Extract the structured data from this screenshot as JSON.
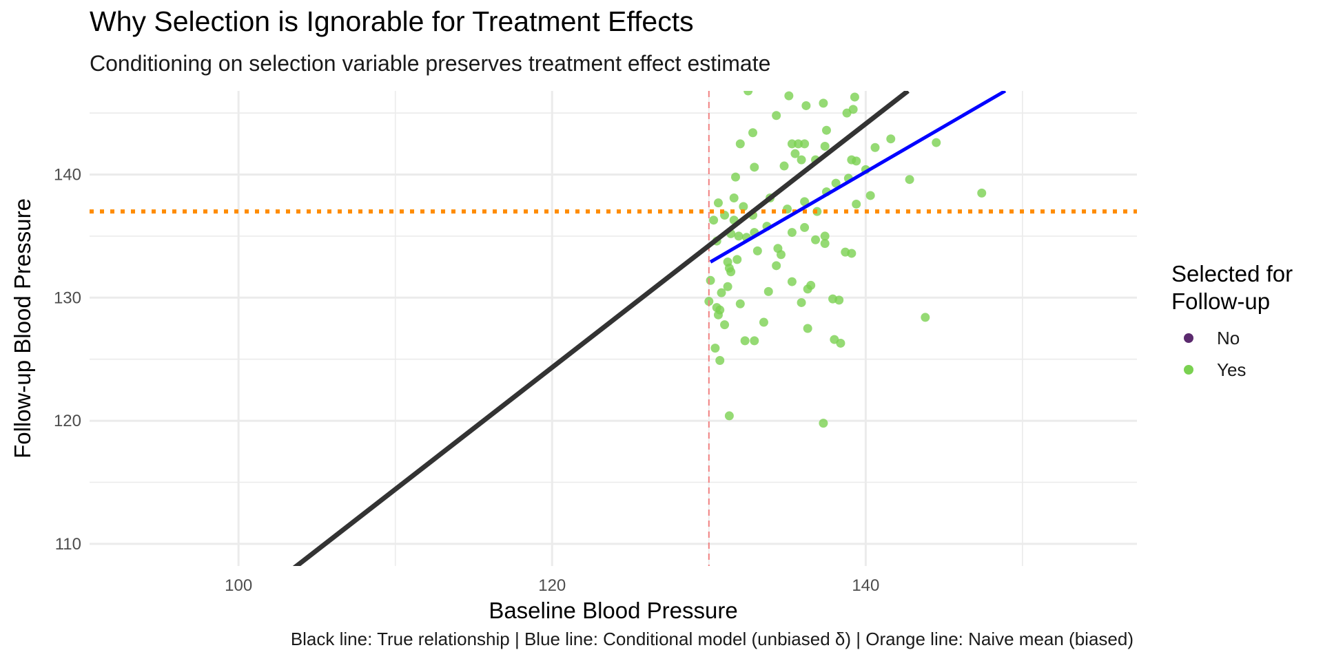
{
  "chart_data": {
    "type": "scatter",
    "title": "Why Selection is Ignorable for Treatment Effects",
    "subtitle": "Conditioning on selection variable preserves treatment effect estimate",
    "caption": "Black line: True relationship | Blue line: Conditional model (unbiased δ) | Orange line: Naive mean (biased)",
    "xlabel": "Baseline Blood Pressure",
    "ylabel": "Follow-up Blood Pressure",
    "xlim": [
      90.5,
      157.3
    ],
    "ylim": [
      108.2,
      146.8
    ],
    "x_ticks": [
      100,
      120,
      140
    ],
    "y_ticks": [
      110,
      120,
      130,
      140
    ],
    "grid": true,
    "legend": {
      "title": "Selected for Follow-up",
      "title_lines": [
        "Selected for",
        "Follow-up"
      ],
      "placement": "right",
      "entries": [
        {
          "label": "No",
          "color": "#5b2a6e"
        },
        {
          "label": "Yes",
          "color": "#7ad151"
        }
      ]
    },
    "series": [
      {
        "name": "Yes",
        "color": "#7ad151",
        "points": [
          [
            132.5,
            146.8
          ],
          [
            135.1,
            146.4
          ],
          [
            137.3,
            145.8
          ],
          [
            139.3,
            146.3
          ],
          [
            134.3,
            144.8
          ],
          [
            136.2,
            145.6
          ],
          [
            138.8,
            145.0
          ],
          [
            139.2,
            145.3
          ],
          [
            132.8,
            143.4
          ],
          [
            137.5,
            143.6
          ],
          [
            141.6,
            142.9
          ],
          [
            144.5,
            142.6
          ],
          [
            132.0,
            142.5
          ],
          [
            135.3,
            142.5
          ],
          [
            135.7,
            142.5
          ],
          [
            136.1,
            142.5
          ],
          [
            137.4,
            142.3
          ],
          [
            140.6,
            142.2
          ],
          [
            135.5,
            141.7
          ],
          [
            135.9,
            141.2
          ],
          [
            136.8,
            141.2
          ],
          [
            139.1,
            141.2
          ],
          [
            139.4,
            141.1
          ],
          [
            132.9,
            140.6
          ],
          [
            134.8,
            140.7
          ],
          [
            140.0,
            140.4
          ],
          [
            131.7,
            139.8
          ],
          [
            138.1,
            139.3
          ],
          [
            138.9,
            139.7
          ],
          [
            142.8,
            139.6
          ],
          [
            137.5,
            138.6
          ],
          [
            147.4,
            138.5
          ],
          [
            131.6,
            138.1
          ],
          [
            133.9,
            138.1
          ],
          [
            140.3,
            138.3
          ],
          [
            130.6,
            137.7
          ],
          [
            136.1,
            137.8
          ],
          [
            139.4,
            137.6
          ],
          [
            132.2,
            137.4
          ],
          [
            135.0,
            137.2
          ],
          [
            136.9,
            137.0
          ],
          [
            131.0,
            136.7
          ],
          [
            132.8,
            136.7
          ],
          [
            130.3,
            136.3
          ],
          [
            131.6,
            136.3
          ],
          [
            133.7,
            135.8
          ],
          [
            135.3,
            135.3
          ],
          [
            136.1,
            135.7
          ],
          [
            131.4,
            135.2
          ],
          [
            131.9,
            135.0
          ],
          [
            132.4,
            134.9
          ],
          [
            137.4,
            135.0
          ],
          [
            132.9,
            135.3
          ],
          [
            130.5,
            134.6
          ],
          [
            136.8,
            134.7
          ],
          [
            137.4,
            134.4
          ],
          [
            134.4,
            134.0
          ],
          [
            133.1,
            133.8
          ],
          [
            134.6,
            133.5
          ],
          [
            138.7,
            133.7
          ],
          [
            139.1,
            133.6
          ],
          [
            131.2,
            132.9
          ],
          [
            131.8,
            133.1
          ],
          [
            134.3,
            132.6
          ],
          [
            131.3,
            132.4
          ],
          [
            131.4,
            132.1
          ],
          [
            130.1,
            131.4
          ],
          [
            131.2,
            130.9
          ],
          [
            135.3,
            131.3
          ],
          [
            136.5,
            131.0
          ],
          [
            136.3,
            130.7
          ],
          [
            130.8,
            130.4
          ],
          [
            133.8,
            130.5
          ],
          [
            137.9,
            129.9
          ],
          [
            138.3,
            129.8
          ],
          [
            130.0,
            129.7
          ],
          [
            130.5,
            129.2
          ],
          [
            130.7,
            129.0
          ],
          [
            132.0,
            129.5
          ],
          [
            135.9,
            129.6
          ],
          [
            130.6,
            128.6
          ],
          [
            133.5,
            128.0
          ],
          [
            131.0,
            127.8
          ],
          [
            136.3,
            127.5
          ],
          [
            143.8,
            128.4
          ],
          [
            132.3,
            126.5
          ],
          [
            132.9,
            126.5
          ],
          [
            138.0,
            126.6
          ],
          [
            138.4,
            126.3
          ],
          [
            130.4,
            125.9
          ],
          [
            130.7,
            124.9
          ],
          [
            131.3,
            120.4
          ],
          [
            137.3,
            119.8
          ]
        ]
      }
    ],
    "lines": [
      {
        "name": "Black line: True relationship",
        "color": "#333333",
        "x": [
          103.2,
          142.7
        ],
        "y": [
          107.7,
          146.8
        ]
      },
      {
        "name": "Blue line: Conditional model (unbiased δ)",
        "color": "#0000ff",
        "x": [
          130.1,
          148.9
        ],
        "y": [
          132.9,
          146.8
        ]
      },
      {
        "name": "Orange line: Naive mean (biased)",
        "color": "#ff8c00",
        "style": "dotted",
        "y": 137.0
      },
      {
        "name": "selection threshold",
        "color": "#f08080",
        "style": "dashed",
        "x": 130.0
      }
    ]
  }
}
